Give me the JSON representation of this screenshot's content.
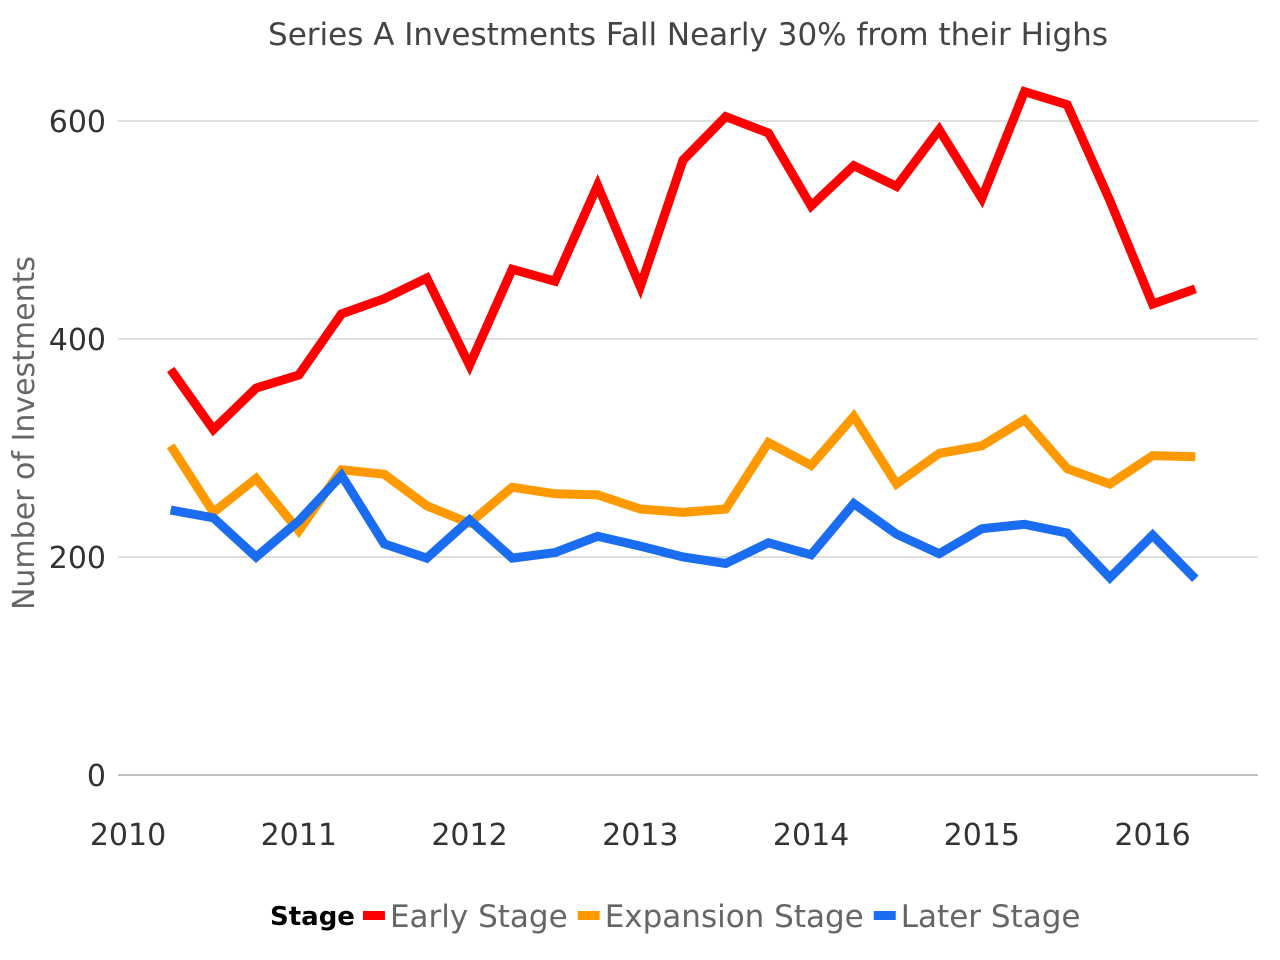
{
  "chart_data": {
    "type": "line",
    "title": "Series A Investments Fall Nearly 30% from their Highs",
    "xlabel": "",
    "ylabel": "Number of Investments",
    "x": [
      "2010 Q2",
      "2010 Q3",
      "2010 Q4",
      "2011 Q1",
      "2011 Q2",
      "2011 Q3",
      "2011 Q4",
      "2012 Q1",
      "2012 Q2",
      "2012 Q3",
      "2012 Q4",
      "2013 Q1",
      "2013 Q2",
      "2013 Q3",
      "2013 Q4",
      "2014 Q1",
      "2014 Q2",
      "2014 Q3",
      "2014 Q4",
      "2015 Q1",
      "2015 Q2",
      "2015 Q3",
      "2015 Q4",
      "2016 Q1",
      "2016 Q2"
    ],
    "x_numeric": [
      2010.25,
      2010.5,
      2010.75,
      2011.0,
      2011.25,
      2011.5,
      2011.75,
      2012.0,
      2012.25,
      2012.5,
      2012.75,
      2013.0,
      2013.25,
      2013.5,
      2013.75,
      2014.0,
      2014.25,
      2014.5,
      2014.75,
      2015.0,
      2015.25,
      2015.5,
      2015.75,
      2016.0,
      2016.25
    ],
    "xlim": [
      2010,
      2016.5
    ],
    "ylim": [
      0,
      600
    ],
    "x_ticks": [
      "2010",
      "2011",
      "2012",
      "2013",
      "2014",
      "2015",
      "2016"
    ],
    "y_ticks": [
      "0",
      "200",
      "400",
      "600"
    ],
    "grid": true,
    "legend_position": "bottom",
    "legend_title": "Stage",
    "series": [
      {
        "name": "Early Stage",
        "color": "#ff0000",
        "values": [
          372,
          317,
          355,
          367,
          423,
          437,
          456,
          376,
          464,
          453,
          541,
          448,
          564,
          604,
          589,
          522,
          559,
          540,
          592,
          529,
          627,
          615,
          527,
          432,
          446
        ]
      },
      {
        "name": "Expansion Stage",
        "color": "#ff9900",
        "values": [
          302,
          241,
          272,
          224,
          280,
          276,
          247,
          231,
          264,
          258,
          257,
          244,
          241,
          244,
          305,
          284,
          329,
          267,
          295,
          302,
          326,
          281,
          267,
          293,
          292
        ]
      },
      {
        "name": "Later Stage",
        "color": "#1a6cf0",
        "values": [
          243,
          236,
          200,
          233,
          275,
          212,
          199,
          234,
          199,
          204,
          219,
          210,
          200,
          194,
          213,
          202,
          249,
          221,
          203,
          226,
          230,
          222,
          181,
          220,
          180
        ]
      }
    ]
  }
}
